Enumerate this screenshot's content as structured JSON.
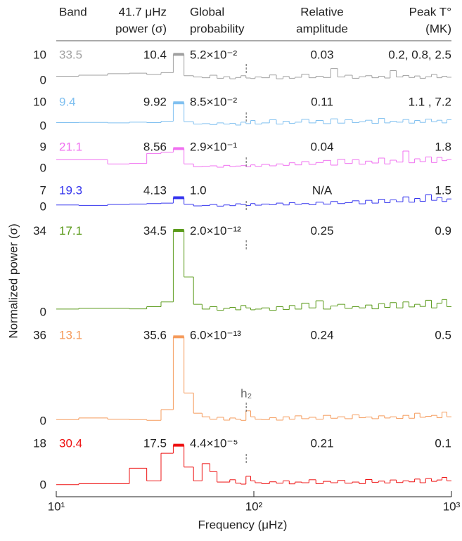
{
  "columns": [
    [
      "Band"
    ],
    [
      "41.7 μHz",
      "power (σ)"
    ],
    [
      "Global",
      "probability"
    ],
    [
      "Relative",
      "amplitude"
    ],
    [
      "Peak T°",
      "(MK)"
    ]
  ],
  "ylabel": "Normalized power (σ)",
  "x_axis": {
    "label": "Frequency (μHz)",
    "log": true,
    "xlim": [
      10,
      1000
    ],
    "xticks": [
      {
        "value": 10,
        "label": "10¹"
      },
      {
        "value": 100,
        "label": "10²"
      },
      {
        "value": 1000,
        "label": "10³"
      }
    ],
    "x": [
      10.4,
      15.6,
      20.8,
      26.1,
      31.3,
      36.5,
      41.7,
      46.9,
      52.1,
      57.3,
      62.5,
      67.7,
      72.9,
      78.2,
      83.4,
      88.6,
      93.8,
      99,
      104,
      115,
      125,
      135,
      146,
      156,
      167,
      182,
      198,
      214,
      235,
      255,
      276,
      302,
      328,
      354,
      380,
      412,
      443,
      474,
      505,
      547,
      589,
      630,
      672,
      714,
      766,
      818,
      870,
      922,
      974
    ]
  },
  "chart_data": [
    {
      "type": "line",
      "band": 33.5,
      "power": 10.4,
      "probability": "5.2×10⁻²",
      "amplitude": 0.03,
      "peak_temperature": "0.2, 0.8, 2.5",
      "ylim": [
        0,
        10.5
      ],
      "yticks": [
        0,
        10
      ],
      "series": [
        {
          "color": "#a0a0a0",
          "values": [
            1.8,
            2.2,
            2.8,
            3.0,
            2.5,
            3.2,
            10.4,
            2.0,
            1.5,
            1.2,
            2.2,
            1.0,
            1.6,
            0.8,
            1.3,
            2.0,
            1.1,
            0.9,
            1.5,
            1.2,
            2.3,
            0.8,
            1.7,
            1.0,
            1.4,
            2.6,
            1.2,
            1.8,
            1.3,
            4.8,
            1.5,
            2.2,
            1.0,
            1.6,
            2.0,
            1.2,
            1.8,
            1.1,
            4.0,
            1.5,
            2.1,
            1.3,
            1.9,
            1.0,
            1.6,
            2.5,
            1.2,
            1.8,
            1.4
          ]
        }
      ]
    },
    {
      "type": "line",
      "band": 9.4,
      "power": 9.92,
      "probability": "8.5×10⁻²",
      "amplitude": 0.11,
      "peak_temperature": "1.1 , 7.2",
      "ylim": [
        0,
        10
      ],
      "yticks": [
        0,
        10
      ],
      "series": [
        {
          "color": "#80c0f0",
          "values": [
            1.6,
            1.7,
            1.5,
            1.8,
            1.6,
            2.2,
            9.92,
            2.0,
            1.0,
            1.2,
            0.8,
            1.5,
            1.0,
            1.3,
            0.6,
            1.8,
            1.2,
            2.5,
            1.0,
            1.5,
            2.8,
            1.0,
            2.2,
            1.3,
            1.8,
            3.0,
            1.5,
            2.5,
            1.2,
            3.2,
            1.4,
            2.8,
            1.6,
            2.0,
            2.6,
            1.3,
            3.4,
            1.5,
            2.2,
            1.8,
            2.9,
            1.4,
            2.5,
            1.7,
            3.1,
            2.0,
            2.6,
            1.5,
            2.8
          ]
        }
      ]
    },
    {
      "type": "line",
      "band": 21.1,
      "power": 8.56,
      "probability": "2.9×10⁻¹",
      "amplitude": 0.04,
      "peak_temperature": 1.8,
      "ylim": [
        0,
        9
      ],
      "yticks": [
        0,
        9
      ],
      "series": [
        {
          "color": "#f070f0",
          "values": [
            3.8,
            3.8,
            2.0,
            2.2,
            6.5,
            7.0,
            8.56,
            2.0,
            0.8,
            1.0,
            1.2,
            0.6,
            1.4,
            0.9,
            1.1,
            1.3,
            0.8,
            1.6,
            1.0,
            1.8,
            1.2,
            2.0,
            1.4,
            2.5,
            1.6,
            3.0,
            1.8,
            2.6,
            3.5,
            1.5,
            4.0,
            2.2,
            3.8,
            1.9,
            3.2,
            2.4,
            4.5,
            2.0,
            3.6,
            2.8,
            7.5,
            2.5,
            4.2,
            3.0,
            5.0,
            2.6,
            4.8,
            3.4,
            3.9
          ]
        }
      ]
    },
    {
      "type": "line",
      "band": 19.3,
      "power": 4.13,
      "probability": "1.0",
      "amplitude": "N/A",
      "peak_temperature": 1.5,
      "ylim": [
        0,
        7
      ],
      "yticks": [
        0,
        7
      ],
      "series": [
        {
          "color": "#3535ee",
          "values": [
            1.0,
            0.8,
            1.2,
            1.4,
            1.6,
            1.8,
            4.13,
            1.3,
            0.6,
            0.8,
            1.2,
            0.5,
            1.0,
            0.7,
            1.5,
            1.2,
            0.8,
            1.6,
            0.9,
            1.4,
            1.1,
            1.8,
            1.0,
            2.0,
            1.3,
            1.6,
            1.1,
            2.2,
            1.4,
            2.5,
            1.6,
            2.0,
            2.8,
            1.5,
            3.0,
            1.8,
            3.5,
            2.0,
            3.2,
            2.4,
            4.5,
            2.2,
            3.8,
            2.6,
            5.5,
            3.0,
            4.2,
            2.5,
            3.6
          ]
        }
      ]
    },
    {
      "type": "line",
      "band": 17.1,
      "power": 34.5,
      "probability": "2.0×10⁻¹²",
      "amplitude": 0.25,
      "peak_temperature": 0.9,
      "ylim": [
        0,
        34.5
      ],
      "yticks": [
        0,
        34
      ],
      "series": [
        {
          "color": "#5a9a1a",
          "values": [
            1.5,
            1.8,
            1.8,
            1.6,
            2.5,
            4.5,
            34.5,
            15.0,
            3.5,
            1.5,
            2.5,
            1.0,
            1.8,
            2.2,
            1.2,
            3.0,
            2.0,
            1.2,
            1.5,
            2.0,
            1.0,
            2.5,
            1.3,
            3.0,
            1.5,
            4.0,
            2.0,
            5.0,
            1.5,
            2.8,
            3.5,
            1.8,
            2.5,
            2.0,
            3.2,
            1.6,
            3.8,
            2.2,
            4.2,
            2.0,
            4.5,
            2.4,
            3.5,
            2.6,
            5.2,
            2.0,
            4.0,
            5.5,
            2.5
          ]
        }
      ]
    },
    {
      "type": "line",
      "band": 13.1,
      "power": 35.6,
      "probability": "6.0×10⁻¹³",
      "amplitude": 0.24,
      "peak_temperature": 0.5,
      "ylim": [
        0,
        36
      ],
      "yticks": [
        0,
        36
      ],
      "annotation": {
        "text": "h₂",
        "x": 91.5
      },
      "series": [
        {
          "color": "#f59a5a",
          "values": [
            0.8,
            1.5,
            1.0,
            0.8,
            0.5,
            5.0,
            35.6,
            12.0,
            3.5,
            2.0,
            1.0,
            1.8,
            0.6,
            1.5,
            1.0,
            0.5,
            4.5,
            2.0,
            1.0,
            0.8,
            1.6,
            0.6,
            2.0,
            1.0,
            2.4,
            1.2,
            1.8,
            1.0,
            2.6,
            1.4,
            2.0,
            1.2,
            2.8,
            1.6,
            1.9,
            1.2,
            2.4,
            1.5,
            2.0,
            1.3,
            2.6,
            1.4,
            3.5,
            1.8,
            2.2,
            2.6,
            1.6,
            4.0,
            2.0
          ]
        }
      ]
    },
    {
      "type": "line",
      "band": 30.4,
      "power": 17.5,
      "probability": "4.4×10⁻⁵",
      "amplitude": 0.21,
      "peak_temperature": 0.1,
      "ylim": [
        0,
        18
      ],
      "yticks": [
        0,
        18
      ],
      "series": [
        {
          "color": "#ee1111",
          "values": [
            0.4,
            0.8,
            0.8,
            7.5,
            2.0,
            14.0,
            17.5,
            8.0,
            2.0,
            9.5,
            6.0,
            1.5,
            1.5,
            2.5,
            1.0,
            0.6,
            4.0,
            2.0,
            1.2,
            0.8,
            1.6,
            1.0,
            2.0,
            0.7,
            1.5,
            1.2,
            2.5,
            0.8,
            1.8,
            1.2,
            2.2,
            1.0,
            1.5,
            0.8,
            2.6,
            1.4,
            1.9,
            1.1,
            2.4,
            1.3,
            2.0,
            1.6,
            2.8,
            1.2,
            3.0,
            1.8,
            2.4,
            3.5,
            2.0
          ]
        }
      ]
    }
  ]
}
